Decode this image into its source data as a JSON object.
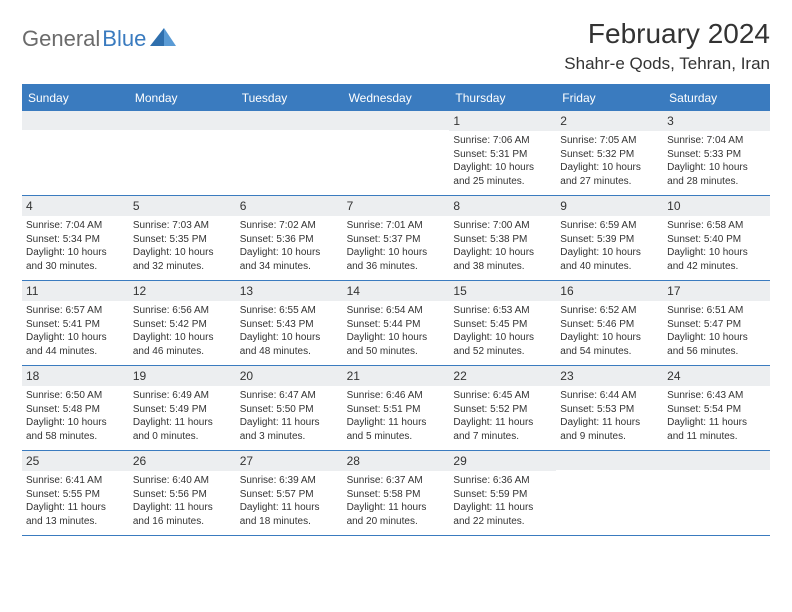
{
  "brand": {
    "general": "General",
    "blue": "Blue"
  },
  "title": "February 2024",
  "location": "Shahr-e Qods, Tehran, Iran",
  "colors": {
    "header_bg": "#3a7bbf",
    "daynum_bg": "#eceef0",
    "text": "#333333",
    "page_bg": "#ffffff"
  },
  "dow": [
    "Sunday",
    "Monday",
    "Tuesday",
    "Wednesday",
    "Thursday",
    "Friday",
    "Saturday"
  ],
  "weeks": [
    [
      {
        "n": "",
        "lines": []
      },
      {
        "n": "",
        "lines": []
      },
      {
        "n": "",
        "lines": []
      },
      {
        "n": "",
        "lines": []
      },
      {
        "n": "1",
        "lines": [
          "Sunrise: 7:06 AM",
          "Sunset: 5:31 PM",
          "Daylight: 10 hours and 25 minutes."
        ]
      },
      {
        "n": "2",
        "lines": [
          "Sunrise: 7:05 AM",
          "Sunset: 5:32 PM",
          "Daylight: 10 hours and 27 minutes."
        ]
      },
      {
        "n": "3",
        "lines": [
          "Sunrise: 7:04 AM",
          "Sunset: 5:33 PM",
          "Daylight: 10 hours and 28 minutes."
        ]
      }
    ],
    [
      {
        "n": "4",
        "lines": [
          "Sunrise: 7:04 AM",
          "Sunset: 5:34 PM",
          "Daylight: 10 hours and 30 minutes."
        ]
      },
      {
        "n": "5",
        "lines": [
          "Sunrise: 7:03 AM",
          "Sunset: 5:35 PM",
          "Daylight: 10 hours and 32 minutes."
        ]
      },
      {
        "n": "6",
        "lines": [
          "Sunrise: 7:02 AM",
          "Sunset: 5:36 PM",
          "Daylight: 10 hours and 34 minutes."
        ]
      },
      {
        "n": "7",
        "lines": [
          "Sunrise: 7:01 AM",
          "Sunset: 5:37 PM",
          "Daylight: 10 hours and 36 minutes."
        ]
      },
      {
        "n": "8",
        "lines": [
          "Sunrise: 7:00 AM",
          "Sunset: 5:38 PM",
          "Daylight: 10 hours and 38 minutes."
        ]
      },
      {
        "n": "9",
        "lines": [
          "Sunrise: 6:59 AM",
          "Sunset: 5:39 PM",
          "Daylight: 10 hours and 40 minutes."
        ]
      },
      {
        "n": "10",
        "lines": [
          "Sunrise: 6:58 AM",
          "Sunset: 5:40 PM",
          "Daylight: 10 hours and 42 minutes."
        ]
      }
    ],
    [
      {
        "n": "11",
        "lines": [
          "Sunrise: 6:57 AM",
          "Sunset: 5:41 PM",
          "Daylight: 10 hours and 44 minutes."
        ]
      },
      {
        "n": "12",
        "lines": [
          "Sunrise: 6:56 AM",
          "Sunset: 5:42 PM",
          "Daylight: 10 hours and 46 minutes."
        ]
      },
      {
        "n": "13",
        "lines": [
          "Sunrise: 6:55 AM",
          "Sunset: 5:43 PM",
          "Daylight: 10 hours and 48 minutes."
        ]
      },
      {
        "n": "14",
        "lines": [
          "Sunrise: 6:54 AM",
          "Sunset: 5:44 PM",
          "Daylight: 10 hours and 50 minutes."
        ]
      },
      {
        "n": "15",
        "lines": [
          "Sunrise: 6:53 AM",
          "Sunset: 5:45 PM",
          "Daylight: 10 hours and 52 minutes."
        ]
      },
      {
        "n": "16",
        "lines": [
          "Sunrise: 6:52 AM",
          "Sunset: 5:46 PM",
          "Daylight: 10 hours and 54 minutes."
        ]
      },
      {
        "n": "17",
        "lines": [
          "Sunrise: 6:51 AM",
          "Sunset: 5:47 PM",
          "Daylight: 10 hours and 56 minutes."
        ]
      }
    ],
    [
      {
        "n": "18",
        "lines": [
          "Sunrise: 6:50 AM",
          "Sunset: 5:48 PM",
          "Daylight: 10 hours and 58 minutes."
        ]
      },
      {
        "n": "19",
        "lines": [
          "Sunrise: 6:49 AM",
          "Sunset: 5:49 PM",
          "Daylight: 11 hours and 0 minutes."
        ]
      },
      {
        "n": "20",
        "lines": [
          "Sunrise: 6:47 AM",
          "Sunset: 5:50 PM",
          "Daylight: 11 hours and 3 minutes."
        ]
      },
      {
        "n": "21",
        "lines": [
          "Sunrise: 6:46 AM",
          "Sunset: 5:51 PM",
          "Daylight: 11 hours and 5 minutes."
        ]
      },
      {
        "n": "22",
        "lines": [
          "Sunrise: 6:45 AM",
          "Sunset: 5:52 PM",
          "Daylight: 11 hours and 7 minutes."
        ]
      },
      {
        "n": "23",
        "lines": [
          "Sunrise: 6:44 AM",
          "Sunset: 5:53 PM",
          "Daylight: 11 hours and 9 minutes."
        ]
      },
      {
        "n": "24",
        "lines": [
          "Sunrise: 6:43 AM",
          "Sunset: 5:54 PM",
          "Daylight: 11 hours and 11 minutes."
        ]
      }
    ],
    [
      {
        "n": "25",
        "lines": [
          "Sunrise: 6:41 AM",
          "Sunset: 5:55 PM",
          "Daylight: 11 hours and 13 minutes."
        ]
      },
      {
        "n": "26",
        "lines": [
          "Sunrise: 6:40 AM",
          "Sunset: 5:56 PM",
          "Daylight: 11 hours and 16 minutes."
        ]
      },
      {
        "n": "27",
        "lines": [
          "Sunrise: 6:39 AM",
          "Sunset: 5:57 PM",
          "Daylight: 11 hours and 18 minutes."
        ]
      },
      {
        "n": "28",
        "lines": [
          "Sunrise: 6:37 AM",
          "Sunset: 5:58 PM",
          "Daylight: 11 hours and 20 minutes."
        ]
      },
      {
        "n": "29",
        "lines": [
          "Sunrise: 6:36 AM",
          "Sunset: 5:59 PM",
          "Daylight: 11 hours and 22 minutes."
        ]
      },
      {
        "n": "",
        "lines": []
      },
      {
        "n": "",
        "lines": []
      }
    ]
  ]
}
